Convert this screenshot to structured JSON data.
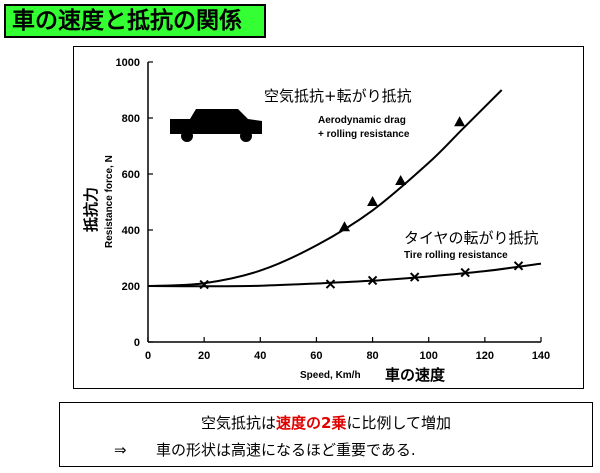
{
  "page": {
    "title": "車の速度と抵抗の関係",
    "note": {
      "line1_pre": "空気抵抗は",
      "line1_highlight": "速度の2乗",
      "line1_post": "に比例して増加",
      "line2_arrow": "⇒",
      "line2_text": "車の形状は高速になるほど重要である."
    },
    "colors": {
      "title_bg": "#33ff33",
      "highlight": "#e00000"
    },
    "icons": {
      "car": "car-icon"
    }
  },
  "chart_data": {
    "type": "line",
    "xlim": [
      0,
      140
    ],
    "ylim": [
      0,
      1000
    ],
    "xticks": [
      0,
      20,
      40,
      60,
      80,
      100,
      120,
      140
    ],
    "yticks": [
      0,
      200,
      400,
      600,
      800,
      1000
    ],
    "xlabel": "Speed, Km/h",
    "xlabel_jp": "車の速度",
    "ylabel": "Resistance force, N",
    "ylabel_jp": "抵抗力",
    "grid": false,
    "series": [
      {
        "name": "空気抵抗+転がり抵抗",
        "name_en_1": "Aerodynamic drag",
        "name_en_2": "+ rolling resistance",
        "marker": "triangle",
        "curve": {
          "x": [
            0,
            20,
            40,
            60,
            80,
            100,
            112,
            126
          ],
          "y": [
            200,
            210,
            255,
            345,
            470,
            640,
            760,
            900
          ]
        },
        "points": {
          "x": [
            70,
            80,
            90,
            111
          ],
          "y": [
            410,
            500,
            575,
            785
          ]
        }
      },
      {
        "name": "タイヤの転がり抵抗",
        "name_en": "Tire rolling resistance",
        "marker": "x",
        "curve": {
          "x": [
            0,
            20,
            40,
            60,
            80,
            100,
            120,
            140
          ],
          "y": [
            200,
            199,
            201,
            209,
            219,
            234,
            253,
            280
          ]
        },
        "points": {
          "x": [
            20,
            65,
            80,
            95,
            113,
            132
          ],
          "y": [
            205,
            207,
            220,
            232,
            248,
            272
          ]
        }
      }
    ]
  }
}
